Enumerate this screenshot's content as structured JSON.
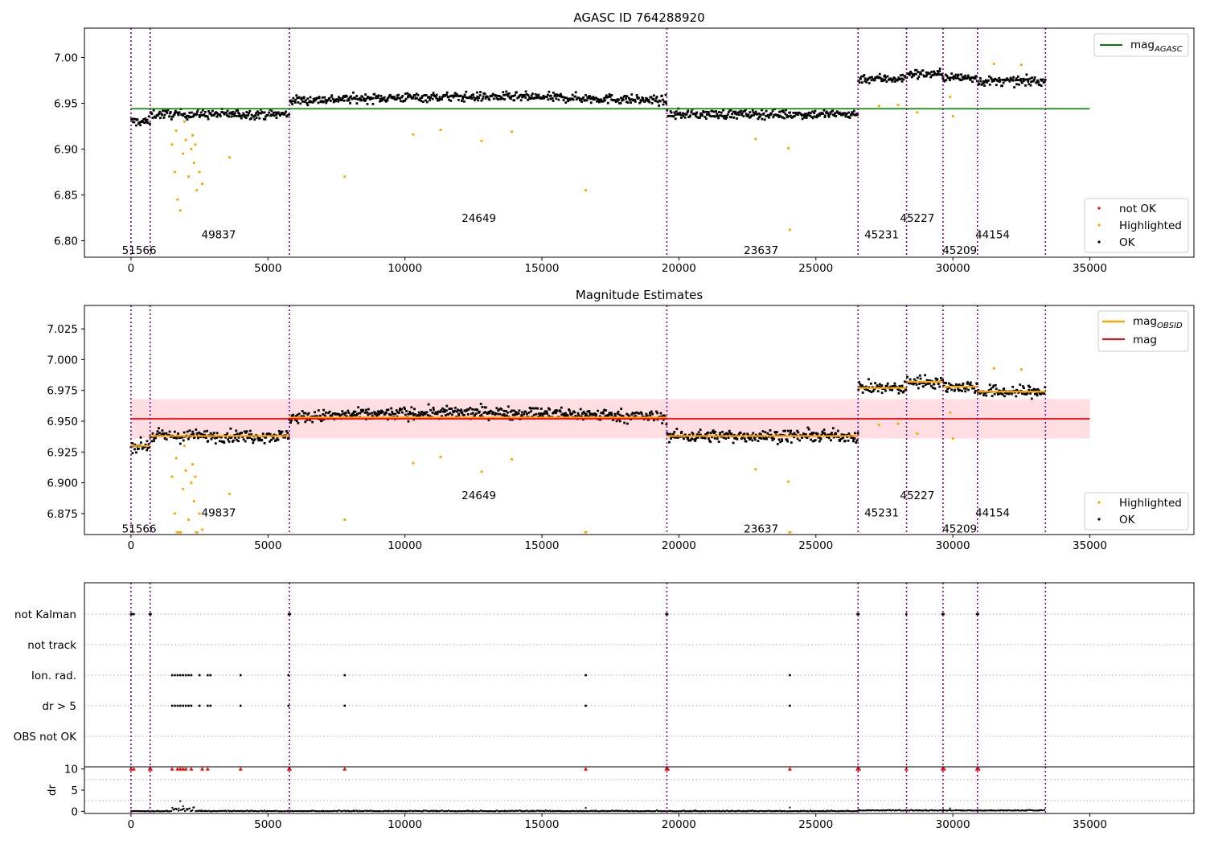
{
  "chart_data": [
    {
      "type": "scatter",
      "title": "AGASC ID 764288920",
      "xlabel": "",
      "ylabel": "",
      "xlim": [
        -1700,
        38800
      ],
      "ylim": [
        6.782,
        7.032
      ],
      "xticks": [
        0,
        5000,
        10000,
        15000,
        20000,
        25000,
        30000,
        35000
      ],
      "yticks": [
        6.8,
        6.85,
        6.9,
        6.95,
        7.0
      ],
      "ytick_labels": [
        "6.80",
        "6.85",
        "6.90",
        "6.95",
        "7.00"
      ],
      "obs_boundaries": [
        0,
        700,
        5780,
        19560,
        26540,
        28310,
        29640,
        30900,
        33380
      ],
      "obs_segments": [
        {
          "x0": 0,
          "x1": 700,
          "mag": 6.93,
          "obsid": "51566"
        },
        {
          "x0": 700,
          "x1": 5780,
          "mag": 6.938,
          "obsid": "49837"
        },
        {
          "x0": 5780,
          "x1": 19560,
          "mag": 6.953,
          "obsid": "24649"
        },
        {
          "x0": 19560,
          "x1": 26540,
          "mag": 6.938,
          "obsid": "23637"
        },
        {
          "x0": 26540,
          "x1": 28310,
          "mag": 6.977,
          "obsid": "45231"
        },
        {
          "x0": 28310,
          "x1": 29640,
          "mag": 6.982,
          "obsid": "45227"
        },
        {
          "x0": 29640,
          "x1": 30900,
          "mag": 6.978,
          "obsid": "45209"
        },
        {
          "x0": 30900,
          "x1": 33380,
          "mag": 6.974,
          "obsid": "44154"
        }
      ],
      "obsid_labels": [
        {
          "x": 300,
          "y": 6.79,
          "text": "51566"
        },
        {
          "x": 3200,
          "y": 6.807,
          "text": "49837"
        },
        {
          "x": 12700,
          "y": 6.825,
          "text": "24649"
        },
        {
          "x": 23000,
          "y": 6.79,
          "text": "23637"
        },
        {
          "x": 27400,
          "y": 6.807,
          "text": "45231"
        },
        {
          "x": 28700,
          "y": 6.825,
          "text": "45227"
        },
        {
          "x": 30250,
          "y": 6.79,
          "text": "45209"
        },
        {
          "x": 31450,
          "y": 6.807,
          "text": "44154"
        }
      ],
      "lines": [
        {
          "name": "mag",
          "sub": "AGASC",
          "y": 6.944,
          "x0": 0,
          "x1": 35000,
          "color": "#008000"
        }
      ],
      "highlighted_points": [
        [
          1500,
          6.905
        ],
        [
          1600,
          6.875
        ],
        [
          1700,
          6.845
        ],
        [
          1800,
          6.833
        ],
        [
          1900,
          6.895
        ],
        [
          2000,
          6.91
        ],
        [
          2100,
          6.87
        ],
        [
          2200,
          6.9
        ],
        [
          2300,
          6.885
        ],
        [
          2400,
          6.855
        ],
        [
          2500,
          6.875
        ],
        [
          2600,
          6.862
        ],
        [
          1650,
          6.92
        ],
        [
          1950,
          6.93
        ],
        [
          2250,
          6.915
        ],
        [
          2350,
          6.905
        ],
        [
          3600,
          6.891
        ],
        [
          7800,
          6.87
        ],
        [
          10300,
          6.916
        ],
        [
          11300,
          6.921
        ],
        [
          12800,
          6.909
        ],
        [
          13900,
          6.919
        ],
        [
          16600,
          6.855
        ],
        [
          22800,
          6.911
        ],
        [
          24000,
          6.901
        ],
        [
          24050,
          6.812
        ],
        [
          27300,
          6.947
        ],
        [
          28000,
          6.948
        ],
        [
          28700,
          6.94
        ],
        [
          29900,
          6.957
        ],
        [
          30000,
          6.936
        ],
        [
          31500,
          6.993
        ],
        [
          32500,
          6.992
        ]
      ],
      "legend": {
        "position": "top-right",
        "lower_position": "lower-right",
        "entries": [
          "not OK",
          "Highlighted",
          "OK"
        ]
      },
      "colors": {
        "ok": "#000000",
        "highlighted": "#ffa500",
        "not_ok": "#ff0000",
        "boundary": "#800080",
        "agasc_line": "#008000"
      }
    },
    {
      "type": "scatter",
      "title": "Magnitude Estimates",
      "xlabel": "",
      "ylabel": "",
      "xlim": [
        -1700,
        38800
      ],
      "ylim": [
        6.858,
        7.044
      ],
      "xticks": [
        0,
        5000,
        10000,
        15000,
        20000,
        25000,
        30000,
        35000
      ],
      "yticks": [
        6.875,
        6.9,
        6.925,
        6.95,
        6.975,
        7.0,
        7.025
      ],
      "ytick_labels": [
        "6.875",
        "6.900",
        "6.925",
        "6.950",
        "6.975",
        "7.000",
        "7.025"
      ],
      "obs_boundaries": [
        0,
        700,
        5780,
        19560,
        26540,
        28310,
        29640,
        30900,
        33380
      ],
      "obsid_labels": [
        {
          "x": 300,
          "y": 6.863,
          "text": "51566"
        },
        {
          "x": 3200,
          "y": 6.876,
          "text": "49837"
        },
        {
          "x": 12700,
          "y": 6.89,
          "text": "24649"
        },
        {
          "x": 23000,
          "y": 6.863,
          "text": "23637"
        },
        {
          "x": 27400,
          "y": 6.876,
          "text": "45231"
        },
        {
          "x": 28700,
          "y": 6.89,
          "text": "45227"
        },
        {
          "x": 30250,
          "y": 6.863,
          "text": "45209"
        },
        {
          "x": 31450,
          "y": 6.876,
          "text": "44154"
        }
      ],
      "mean_mag": 6.952,
      "band": [
        6.936,
        6.968
      ],
      "lines": [
        {
          "name": "mag",
          "sub": "OBSID",
          "color": "#ffa500"
        },
        {
          "name": "mag",
          "sub": "",
          "y": 6.952,
          "x0": 0,
          "x1": 35000,
          "color": "#ff0000"
        }
      ],
      "legend": {
        "position": "top-right",
        "lower_position": "lower-right",
        "entries": [
          "Highlighted",
          "OK"
        ]
      },
      "colors": {
        "ok": "#000000",
        "highlighted": "#ffa500",
        "band": "#ffd6dc",
        "mean_line": "#ff0000",
        "obsid_line": "#ffa500"
      }
    },
    {
      "type": "scatter",
      "title": "",
      "xlabel": "",
      "ylabel": "",
      "xlim": [
        -1700,
        38800
      ],
      "xticks": [
        0,
        5000,
        10000,
        15000,
        20000,
        25000,
        30000,
        35000
      ],
      "flag_rows": [
        "not Kalman",
        "not track",
        "Ion. rad.",
        "dr > 5",
        "OBS not OK"
      ],
      "flag_points": {
        "not Kalman": [
          0,
          50,
          100,
          680,
          720,
          5760,
          5800,
          19540,
          19580,
          26520,
          26560,
          28300,
          29620,
          29660,
          30880,
          30920
        ],
        "not track": [],
        "Ion. rad.": [
          1500,
          1600,
          1700,
          1800,
          1900,
          2000,
          2100,
          2200,
          2500,
          2800,
          2900,
          4000,
          5750,
          7800,
          16600,
          24050
        ],
        "dr > 5": [
          1500,
          1600,
          1700,
          1800,
          1900,
          2000,
          2100,
          2200,
          2500,
          2800,
          2900,
          4000,
          5750,
          7800,
          16600,
          24050
        ],
        "OBS not OK": []
      }
    },
    {
      "type": "scatter",
      "title": "",
      "xlabel": "",
      "ylabel": "dr",
      "xlim": [
        -1700,
        38800
      ],
      "ylim": [
        -0.5,
        10.5
      ],
      "xticks": [
        0,
        5000,
        10000,
        15000,
        20000,
        25000,
        30000,
        35000
      ],
      "yticks": [
        0,
        5,
        10
      ],
      "ytick_labels": [
        "0",
        "5",
        "10"
      ],
      "clipped_markers": [
        0,
        100,
        680,
        720,
        1500,
        1700,
        1800,
        1900,
        2000,
        2200,
        2600,
        2800,
        4000,
        5760,
        5800,
        7800,
        16600,
        19540,
        19600,
        24050,
        26520,
        26580,
        28300,
        29620,
        29680,
        30880,
        30940
      ],
      "notable_points": [
        [
          1800,
          2.4
        ],
        [
          1900,
          1.2
        ],
        [
          16600,
          0.8
        ],
        [
          24050,
          0.9
        ],
        [
          29900,
          0.7
        ]
      ],
      "colors": {
        "points": "#000000",
        "clipped": "#ff0000"
      }
    }
  ]
}
